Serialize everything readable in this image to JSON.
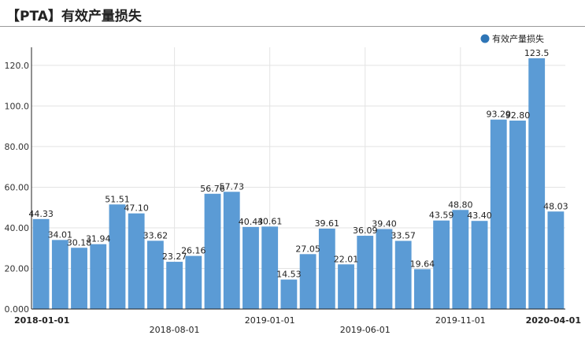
{
  "page": {
    "title": "【PTA】有效产量损失"
  },
  "chart_data": {
    "type": "bar",
    "title": "【PTA】有效产量损失",
    "series": [
      {
        "name": "有效产量损失",
        "color": "#5b9bd5",
        "values": [
          44.33,
          34.01,
          30.18,
          31.94,
          51.51,
          47.1,
          33.62,
          23.27,
          26.16,
          56.76,
          57.73,
          40.43,
          40.61,
          14.53,
          27.05,
          39.61,
          22.01,
          36.09,
          39.4,
          33.57,
          19.64,
          43.59,
          48.8,
          43.4,
          93.29,
          92.8,
          123.5,
          48.03
        ]
      }
    ],
    "labels": [
      "44.33",
      "34.01",
      "30.18",
      "31.94",
      "51.51",
      "47.10",
      "33.62",
      "23.27",
      "26.16",
      "56.76",
      "57.73",
      "40.43",
      "40.61",
      "14.53",
      "27.05",
      "39.61",
      "22.01",
      "36.09",
      "39.40",
      "33.57",
      "19.64",
      "43.59",
      "48.80",
      "43.40",
      "93.29",
      "92.80",
      "123.5",
      "48.03"
    ],
    "x_ticks": [
      {
        "index": 0,
        "label": "2018-01-01",
        "bold": true,
        "row": 1
      },
      {
        "index": 7,
        "label": "2018-08-01",
        "bold": false,
        "row": 2
      },
      {
        "index": 12,
        "label": "2019-01-01",
        "bold": false,
        "row": 1
      },
      {
        "index": 17,
        "label": "2019-06-01",
        "bold": false,
        "row": 2
      },
      {
        "index": 22,
        "label": "2019-11-01",
        "bold": false,
        "row": 1
      },
      {
        "index": 27,
        "label": "2020-04-01",
        "bold": true,
        "row": 1
      }
    ],
    "y_ticks": [
      "0.000",
      "20.00",
      "40.00",
      "60.00",
      "80.00",
      "100.0",
      "120.0"
    ],
    "ylim": [
      0,
      125
    ],
    "xlabel": "",
    "ylabel": "",
    "grid": true,
    "legend_position": "top-right"
  }
}
